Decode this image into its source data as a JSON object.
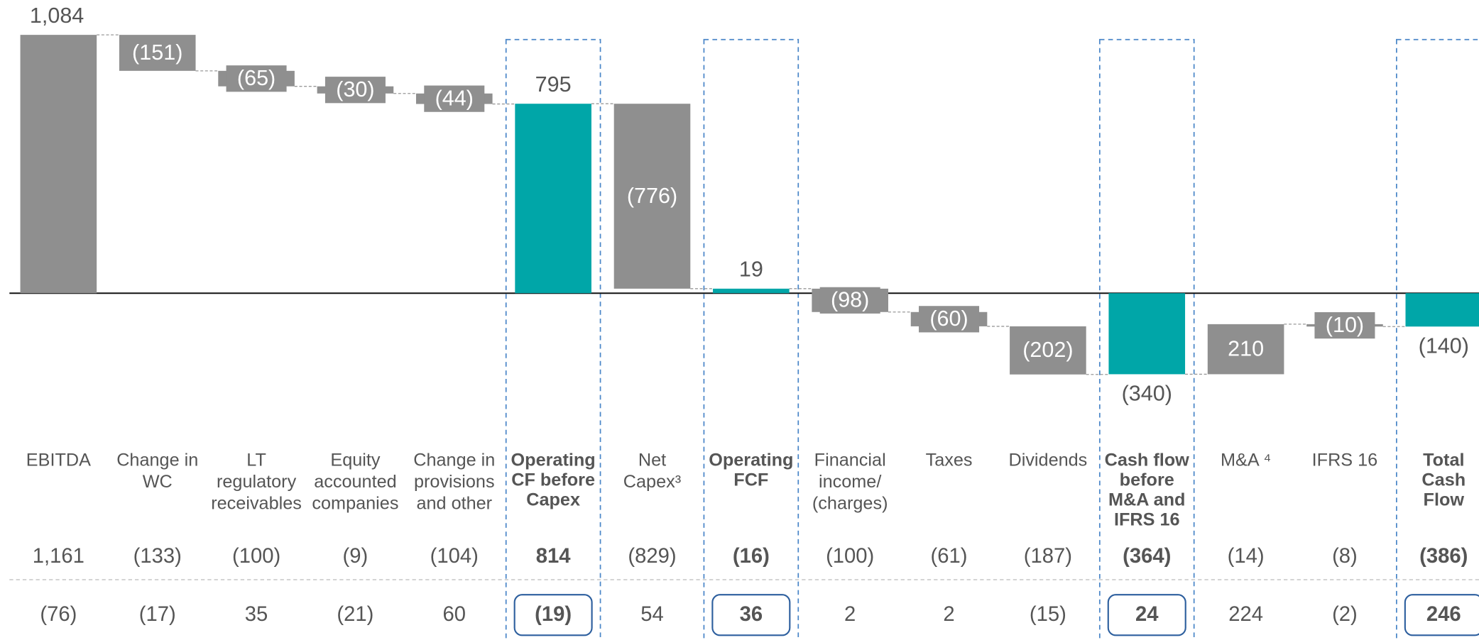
{
  "chart_data": {
    "type": "waterfall",
    "categories": [
      "EBITDA",
      "Change in\nWC",
      "LT\nregulatory\nreceivables",
      "Equity\naccounted\ncompanies",
      "Change in\nprovisions\nand other",
      "Operating\nCF before\nCapex",
      "Net\nCapex³",
      "Operating\nFCF",
      "Financial\nincome/\n(charges)",
      "Taxes",
      "Dividends",
      "Cash flow\nbefore\nM&A and\nIFRS 16",
      "M&A ⁴",
      "IFRS 16",
      "Total\nCash\nFlow"
    ],
    "measure": [
      "absolute",
      "relative",
      "relative",
      "relative",
      "relative",
      "total",
      "relative",
      "total",
      "relative",
      "relative",
      "relative",
      "total",
      "relative",
      "relative",
      "total"
    ],
    "values": [
      1084,
      -151,
      -65,
      -30,
      -44,
      795,
      -776,
      19,
      -98,
      -60,
      -202,
      -340,
      210,
      -10,
      -140
    ],
    "value_labels": [
      "1,084",
      "(151)",
      "(65)",
      "(30)",
      "(44)",
      "795",
      "(776)",
      "19",
      "(98)",
      "(60)",
      "(202)",
      "(340)",
      "210",
      "(10)",
      "(140)"
    ],
    "color": "#8f8f8f",
    "total_color": "#00a6a8",
    "ylim": [
      -400,
      1150
    ],
    "rows": [
      [
        "1,161",
        "(133)",
        "(100)",
        "(9)",
        "(104)",
        "814",
        "(829)",
        "(16)",
        "(100)",
        "(61)",
        "(187)",
        "(364)",
        "(14)",
        "(8)",
        "(386)"
      ],
      [
        "(76)",
        "(17)",
        "35",
        "(21)",
        "60",
        "(19)",
        "54",
        "36",
        "2",
        "2",
        "(15)",
        "24",
        "224",
        "(2)",
        "246"
      ]
    ]
  }
}
